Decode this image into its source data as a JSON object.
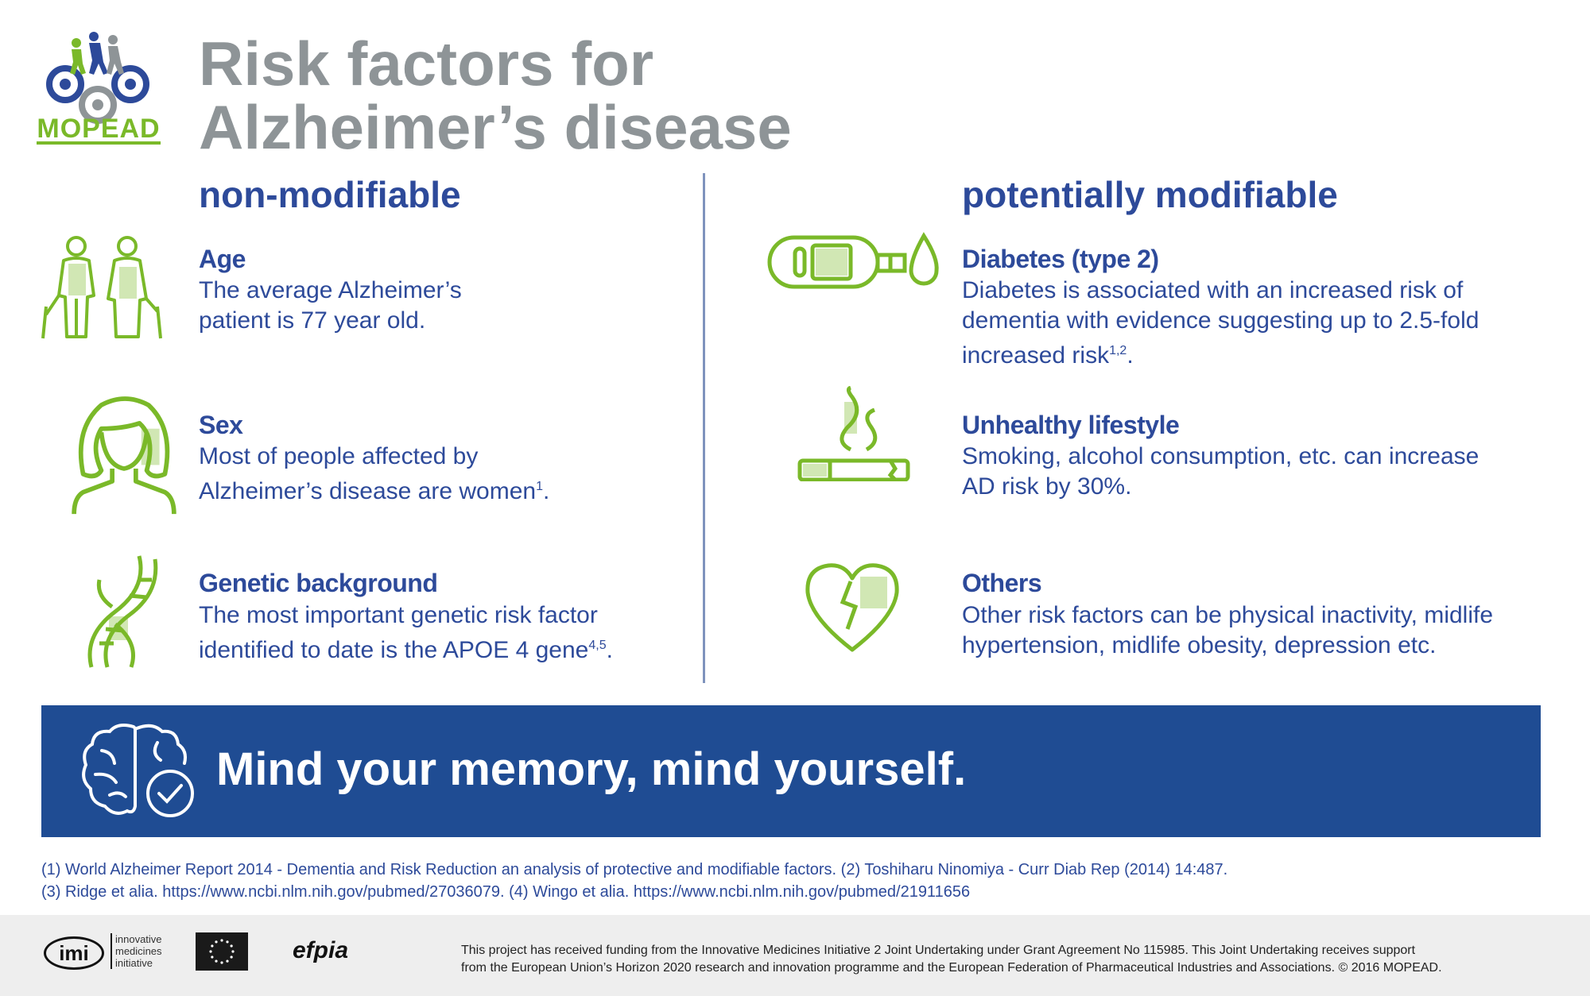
{
  "logo": {
    "text": "MOPEAD"
  },
  "title": {
    "line1": "Risk factors for",
    "line2": "Alzheimer’s disease"
  },
  "columns": {
    "left": {
      "heading": "non-modifiable",
      "items": [
        {
          "icon": "elderly-couple-icon",
          "title": "Age",
          "line1": "The average Alzheimer’s",
          "line2": "patient is 77 year old.",
          "sup": "",
          "tail": ""
        },
        {
          "icon": "woman-icon",
          "title": "Sex",
          "line1": "Most of people affected by",
          "line2": "Alzheimer’s disease are women",
          "sup": "1",
          "tail": "."
        },
        {
          "icon": "dna-icon",
          "title": "Genetic background",
          "line1": "The most important genetic risk factor",
          "line2": "identified to date is the APOE 4 gene",
          "sup": "4,5",
          "tail": "."
        }
      ]
    },
    "right": {
      "heading": "potentially modifiable",
      "items": [
        {
          "icon": "glucose-meter-icon",
          "title": "Diabetes (type 2)",
          "line1": "Diabetes is associated with an increased risk of",
          "line2": "dementia with evidence suggesting up to 2.5-fold",
          "line3": "increased risk",
          "sup": "1,2",
          "tail": "."
        },
        {
          "icon": "cigarette-icon",
          "title": "Unhealthy lifestyle",
          "line1": "Smoking, alcohol consumption, etc. can increase",
          "line2": "AD risk by 30%."
        },
        {
          "icon": "broken-heart-icon",
          "title": "Others",
          "line1": "Other risk factors can be physical inactivity, midlife",
          "line2": "hypertension, midlife obesity, depression etc."
        }
      ]
    }
  },
  "banner": {
    "icon": "brain-check-icon",
    "slogan": "Mind your memory, mind yourself."
  },
  "references": {
    "line1": "(1) World Alzheimer Report 2014 - Dementia and Risk Reduction an analysis of protective and modifiable factors. (2) Toshiharu Ninomiya - Curr Diab Rep (2014) 14:487.",
    "line2": "(3) Ridge et alia. https://www.ncbi.nlm.nih.gov/pubmed/27036079. (4) Wingo et alia. https://www.ncbi.nlm.nih.gov/pubmed/21911656"
  },
  "footer": {
    "imi_mark": "imi",
    "imi_line1": "innovative",
    "imi_line2": "medicines",
    "imi_line3": "initiative",
    "efpia": "efpia",
    "funding_line1": "This project has received funding from the Innovative Medicines Initiative 2 Joint Undertaking under Grant Agreement No 115985. This Joint Undertaking receives support",
    "funding_line2": "from the European Union’s Horizon 2020 research and innovation programme and the European Federation of Pharmaceutical Industries and Associations. © 2016 MOPEAD."
  },
  "colors": {
    "blue": "#2d4a9a",
    "green": "#7ab929",
    "gray": "#8e9497",
    "banner": "#1f4c93"
  }
}
